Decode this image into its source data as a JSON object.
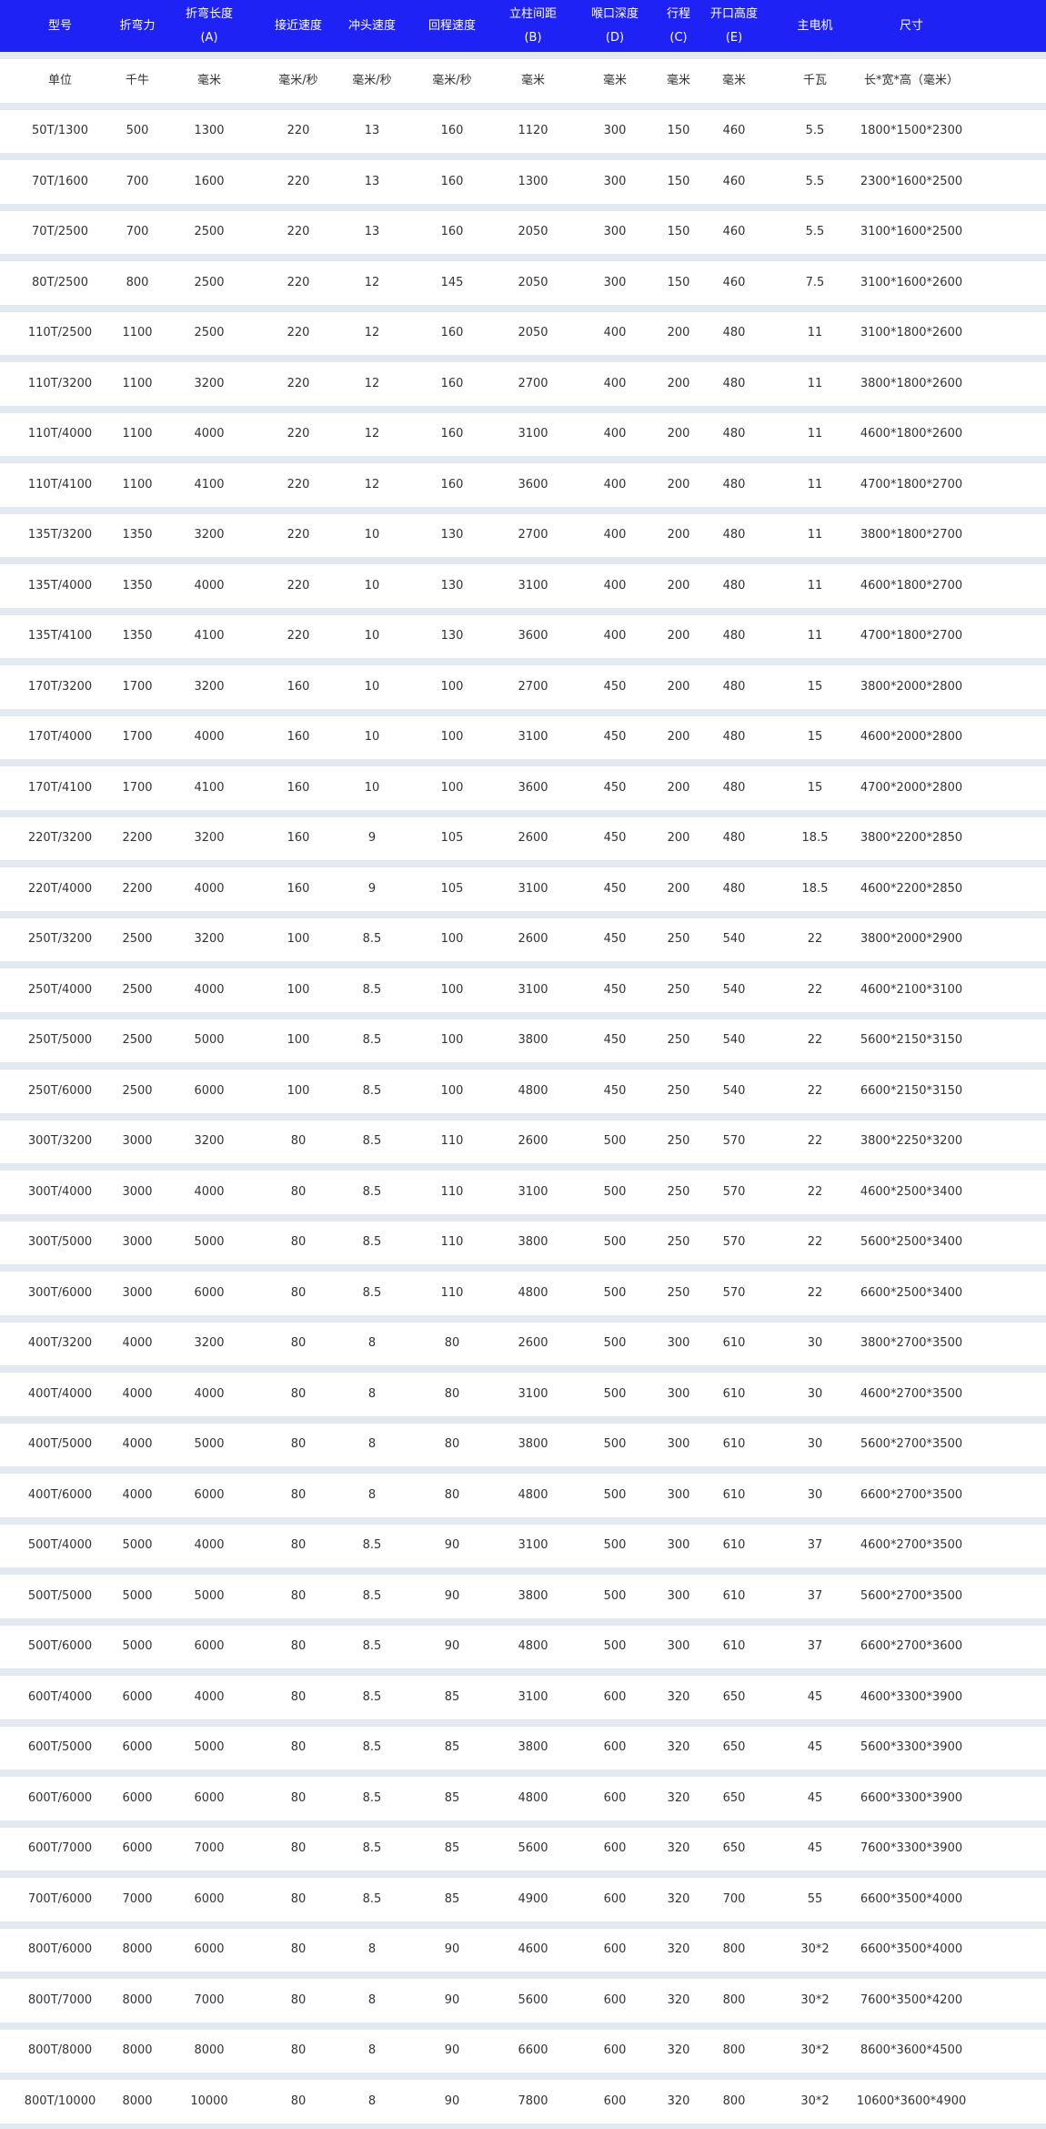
{
  "colors": {
    "header_bg": "#1f22f5",
    "band": "#e3e9f0",
    "text": "#333333"
  },
  "headers": [
    [
      "型号"
    ],
    [
      "折弯力"
    ],
    [
      "折弯长度",
      "(A)"
    ],
    [
      "接近速度"
    ],
    [
      "冲头速度"
    ],
    [
      "回程速度"
    ],
    [
      "立柱间距",
      "(B)"
    ],
    [
      "喉口深度",
      "(D)"
    ],
    [
      "行程",
      "(C)"
    ],
    [
      "开口高度",
      "(E)"
    ],
    [
      "主电机"
    ],
    [
      "尺寸"
    ]
  ],
  "units": [
    "单位",
    "千牛",
    "毫米",
    "毫米/秒",
    "毫米/秒",
    "毫米/秒",
    "毫米",
    "毫米",
    "毫米",
    "毫米",
    "千瓦",
    "长*宽*高（毫米）"
  ],
  "rows": [
    [
      "50T/1300",
      "500",
      "1300",
      "220",
      "13",
      "160",
      "1120",
      "300",
      "150",
      "460",
      "5.5",
      "1800*1500*2300"
    ],
    [
      "70T/1600",
      "700",
      "1600",
      "220",
      "13",
      "160",
      "1300",
      "300",
      "150",
      "460",
      "5.5",
      "2300*1600*2500"
    ],
    [
      "70T/2500",
      "700",
      "2500",
      "220",
      "13",
      "160",
      "2050",
      "300",
      "150",
      "460",
      "5.5",
      "3100*1600*2500"
    ],
    [
      "80T/2500",
      "800",
      "2500",
      "220",
      "12",
      "145",
      "2050",
      "300",
      "150",
      "460",
      "7.5",
      "3100*1600*2600"
    ],
    [
      "110T/2500",
      "1100",
      "2500",
      "220",
      "12",
      "160",
      "2050",
      "400",
      "200",
      "480",
      "11",
      "3100*1800*2600"
    ],
    [
      "110T/3200",
      "1100",
      "3200",
      "220",
      "12",
      "160",
      "2700",
      "400",
      "200",
      "480",
      "11",
      "3800*1800*2600"
    ],
    [
      "110T/4000",
      "1100",
      "4000",
      "220",
      "12",
      "160",
      "3100",
      "400",
      "200",
      "480",
      "11",
      "4600*1800*2600"
    ],
    [
      "110T/4100",
      "1100",
      "4100",
      "220",
      "12",
      "160",
      "3600",
      "400",
      "200",
      "480",
      "11",
      "4700*1800*2700"
    ],
    [
      "135T/3200",
      "1350",
      "3200",
      "220",
      "10",
      "130",
      "2700",
      "400",
      "200",
      "480",
      "11",
      "3800*1800*2700"
    ],
    [
      "135T/4000",
      "1350",
      "4000",
      "220",
      "10",
      "130",
      "3100",
      "400",
      "200",
      "480",
      "11",
      "4600*1800*2700"
    ],
    [
      "135T/4100",
      "1350",
      "4100",
      "220",
      "10",
      "130",
      "3600",
      "400",
      "200",
      "480",
      "11",
      "4700*1800*2700"
    ],
    [
      "170T/3200",
      "1700",
      "3200",
      "160",
      "10",
      "100",
      "2700",
      "450",
      "200",
      "480",
      "15",
      "3800*2000*2800"
    ],
    [
      "170T/4000",
      "1700",
      "4000",
      "160",
      "10",
      "100",
      "3100",
      "450",
      "200",
      "480",
      "15",
      "4600*2000*2800"
    ],
    [
      "170T/4100",
      "1700",
      "4100",
      "160",
      "10",
      "100",
      "3600",
      "450",
      "200",
      "480",
      "15",
      "4700*2000*2800"
    ],
    [
      "220T/3200",
      "2200",
      "3200",
      "160",
      "9",
      "105",
      "2600",
      "450",
      "200",
      "480",
      "18.5",
      "3800*2200*2850"
    ],
    [
      "220T/4000",
      "2200",
      "4000",
      "160",
      "9",
      "105",
      "3100",
      "450",
      "200",
      "480",
      "18.5",
      "4600*2200*2850"
    ],
    [
      "250T/3200",
      "2500",
      "3200",
      "100",
      "8.5",
      "100",
      "2600",
      "450",
      "250",
      "540",
      "22",
      "3800*2000*2900"
    ],
    [
      "250T/4000",
      "2500",
      "4000",
      "100",
      "8.5",
      "100",
      "3100",
      "450",
      "250",
      "540",
      "22",
      "4600*2100*3100"
    ],
    [
      "250T/5000",
      "2500",
      "5000",
      "100",
      "8.5",
      "100",
      "3800",
      "450",
      "250",
      "540",
      "22",
      "5600*2150*3150"
    ],
    [
      "250T/6000",
      "2500",
      "6000",
      "100",
      "8.5",
      "100",
      "4800",
      "450",
      "250",
      "540",
      "22",
      "6600*2150*3150"
    ],
    [
      "300T/3200",
      "3000",
      "3200",
      "80",
      "8.5",
      "110",
      "2600",
      "500",
      "250",
      "570",
      "22",
      "3800*2250*3200"
    ],
    [
      "300T/4000",
      "3000",
      "4000",
      "80",
      "8.5",
      "110",
      "3100",
      "500",
      "250",
      "570",
      "22",
      "4600*2500*3400"
    ],
    [
      "300T/5000",
      "3000",
      "5000",
      "80",
      "8.5",
      "110",
      "3800",
      "500",
      "250",
      "570",
      "22",
      "5600*2500*3400"
    ],
    [
      "300T/6000",
      "3000",
      "6000",
      "80",
      "8.5",
      "110",
      "4800",
      "500",
      "250",
      "570",
      "22",
      "6600*2500*3400"
    ],
    [
      "400T/3200",
      "4000",
      "3200",
      "80",
      "8",
      "80",
      "2600",
      "500",
      "300",
      "610",
      "30",
      "3800*2700*3500"
    ],
    [
      "400T/4000",
      "4000",
      "4000",
      "80",
      "8",
      "80",
      "3100",
      "500",
      "300",
      "610",
      "30",
      "4600*2700*3500"
    ],
    [
      "400T/5000",
      "4000",
      "5000",
      "80",
      "8",
      "80",
      "3800",
      "500",
      "300",
      "610",
      "30",
      "5600*2700*3500"
    ],
    [
      "400T/6000",
      "4000",
      "6000",
      "80",
      "8",
      "80",
      "4800",
      "500",
      "300",
      "610",
      "30",
      "6600*2700*3500"
    ],
    [
      "500T/4000",
      "5000",
      "4000",
      "80",
      "8.5",
      "90",
      "3100",
      "500",
      "300",
      "610",
      "37",
      "4600*2700*3500"
    ],
    [
      "500T/5000",
      "5000",
      "5000",
      "80",
      "8.5",
      "90",
      "3800",
      "500",
      "300",
      "610",
      "37",
      "5600*2700*3500"
    ],
    [
      "500T/6000",
      "5000",
      "6000",
      "80",
      "8.5",
      "90",
      "4800",
      "500",
      "300",
      "610",
      "37",
      "6600*2700*3600"
    ],
    [
      "600T/4000",
      "6000",
      "4000",
      "80",
      "8.5",
      "85",
      "3100",
      "600",
      "320",
      "650",
      "45",
      "4600*3300*3900"
    ],
    [
      "600T/5000",
      "6000",
      "5000",
      "80",
      "8.5",
      "85",
      "3800",
      "600",
      "320",
      "650",
      "45",
      "5600*3300*3900"
    ],
    [
      "600T/6000",
      "6000",
      "6000",
      "80",
      "8.5",
      "85",
      "4800",
      "600",
      "320",
      "650",
      "45",
      "6600*3300*3900"
    ],
    [
      "600T/7000",
      "6000",
      "7000",
      "80",
      "8.5",
      "85",
      "5600",
      "600",
      "320",
      "650",
      "45",
      "7600*3300*3900"
    ],
    [
      "700T/6000",
      "7000",
      "6000",
      "80",
      "8.5",
      "85",
      "4900",
      "600",
      "320",
      "700",
      "55",
      "6600*3500*4000"
    ],
    [
      "800T/6000",
      "8000",
      "6000",
      "80",
      "8",
      "90",
      "4600",
      "600",
      "320",
      "800",
      "30*2",
      "6600*3500*4000"
    ],
    [
      "800T/7000",
      "8000",
      "7000",
      "80",
      "8",
      "90",
      "5600",
      "600",
      "320",
      "800",
      "30*2",
      "7600*3500*4200"
    ],
    [
      "800T/8000",
      "8000",
      "8000",
      "80",
      "8",
      "90",
      "6600",
      "600",
      "320",
      "800",
      "30*2",
      "8600*3600*4500"
    ],
    [
      "800T/10000",
      "8000",
      "10000",
      "80",
      "8",
      "90",
      "7800",
      "600",
      "320",
      "800",
      "30*2",
      "10600*3600*4900"
    ]
  ]
}
